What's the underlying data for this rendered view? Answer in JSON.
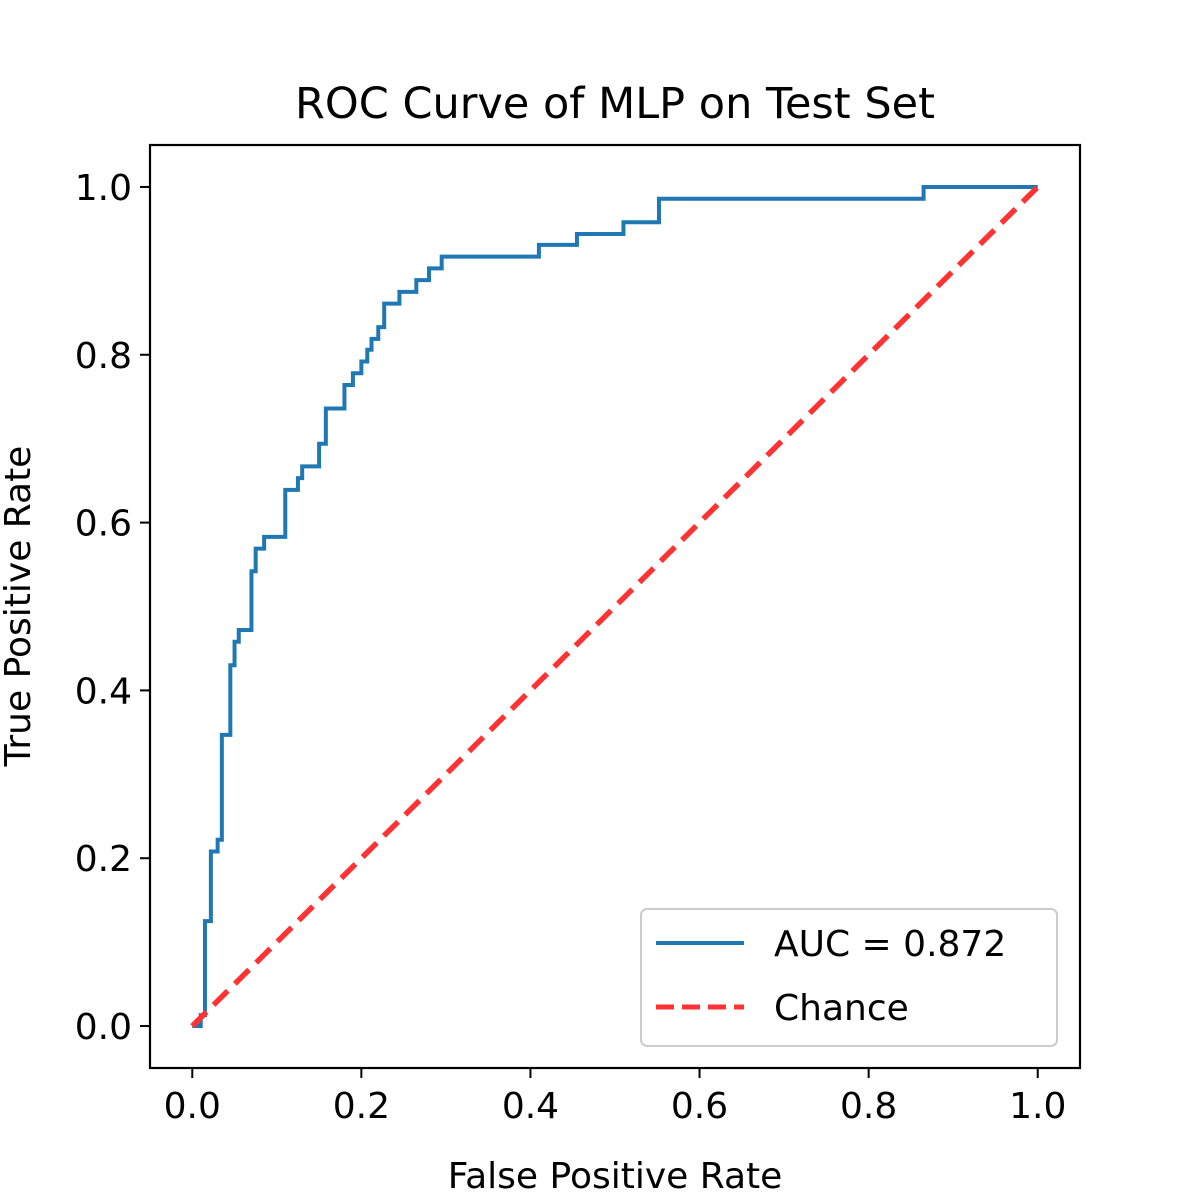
{
  "chart_data": {
    "type": "line",
    "title": "ROC Curve of MLP on Test Set",
    "xlabel": "False Positive Rate",
    "ylabel": "True Positive Rate",
    "xlim": [
      -0.05,
      1.05
    ],
    "ylim": [
      -0.05,
      1.05
    ],
    "xticks": [
      0.0,
      0.2,
      0.4,
      0.6,
      0.8,
      1.0
    ],
    "yticks": [
      0.0,
      0.2,
      0.4,
      0.6,
      0.8,
      1.0
    ],
    "tick_labels": [
      "0.0",
      "0.2",
      "0.4",
      "0.6",
      "0.8",
      "1.0"
    ],
    "grid": false,
    "legend_position": "lower-right",
    "series": [
      {
        "name": "AUC = 0.872",
        "color": "#1f77b4",
        "style": "solid",
        "x": [
          0.0,
          0.01,
          0.01,
          0.015,
          0.015,
          0.022,
          0.022,
          0.03,
          0.03,
          0.035,
          0.035,
          0.045,
          0.045,
          0.05,
          0.05,
          0.055,
          0.055,
          0.07,
          0.07,
          0.075,
          0.075,
          0.085,
          0.085,
          0.11,
          0.11,
          0.125,
          0.125,
          0.13,
          0.13,
          0.15,
          0.15,
          0.158,
          0.158,
          0.18,
          0.18,
          0.19,
          0.19,
          0.2,
          0.2,
          0.207,
          0.207,
          0.212,
          0.212,
          0.22,
          0.22,
          0.227,
          0.227,
          0.245,
          0.245,
          0.265,
          0.265,
          0.28,
          0.28,
          0.295,
          0.295,
          0.41,
          0.41,
          0.455,
          0.455,
          0.51,
          0.51,
          0.552,
          0.552,
          0.865,
          0.865,
          1.0
        ],
        "y": [
          0.0,
          0.0,
          0.013,
          0.013,
          0.125,
          0.125,
          0.208,
          0.208,
          0.222,
          0.222,
          0.347,
          0.347,
          0.43,
          0.43,
          0.458,
          0.458,
          0.472,
          0.472,
          0.542,
          0.542,
          0.569,
          0.569,
          0.583,
          0.583,
          0.639,
          0.639,
          0.653,
          0.653,
          0.667,
          0.667,
          0.694,
          0.694,
          0.736,
          0.736,
          0.764,
          0.764,
          0.778,
          0.778,
          0.792,
          0.792,
          0.806,
          0.806,
          0.819,
          0.819,
          0.833,
          0.833,
          0.861,
          0.861,
          0.875,
          0.875,
          0.889,
          0.889,
          0.903,
          0.903,
          0.917,
          0.917,
          0.931,
          0.931,
          0.944,
          0.944,
          0.958,
          0.958,
          0.986,
          0.986,
          1.0,
          1.0
        ]
      },
      {
        "name": "Chance",
        "color": "#ff3333",
        "style": "dashed",
        "x": [
          0.0,
          1.0
        ],
        "y": [
          0.0,
          1.0
        ]
      }
    ]
  }
}
